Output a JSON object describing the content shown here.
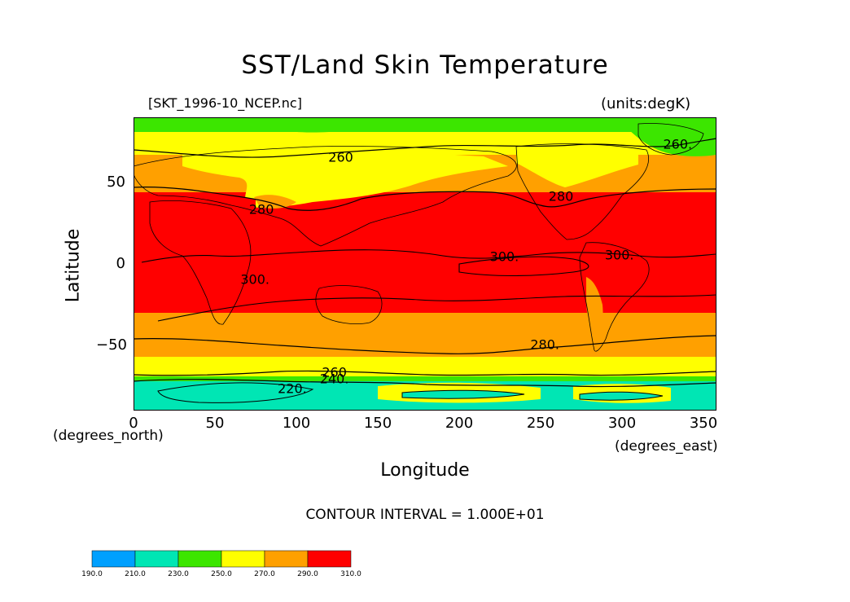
{
  "title": "SST/Land Skin Temperature",
  "file_label": "[SKT_1996-10_NCEP.nc]",
  "units_label": "(units:degK)",
  "y_axis": {
    "label": "Latitude",
    "ticks": [
      "50",
      "0",
      "−50"
    ],
    "tick_values": [
      50,
      0,
      -50
    ],
    "range": [
      -90,
      90
    ]
  },
  "x_axis": {
    "label": "Longitude",
    "ticks": [
      "0",
      "50",
      "100",
      "150",
      "200",
      "250",
      "300",
      "350"
    ],
    "tick_values": [
      0,
      50,
      100,
      150,
      200,
      250,
      300,
      350
    ],
    "range": [
      0,
      360
    ]
  },
  "x_units_left": "(degrees_north)",
  "x_units_right": "(degrees_east)",
  "contour_interval": "CONTOUR INTERVAL = 1.000E+01",
  "contour_labels": [
    {
      "text": "260",
      "lon": 128,
      "lat": 65
    },
    {
      "text": "260.",
      "lon": 336,
      "lat": 73
    },
    {
      "text": "280",
      "lon": 79,
      "lat": 33
    },
    {
      "text": "280",
      "lon": 264,
      "lat": 41
    },
    {
      "text": "300.",
      "lon": 229,
      "lat": 4
    },
    {
      "text": "300.",
      "lon": 300,
      "lat": 5
    },
    {
      "text": "300.",
      "lon": 75,
      "lat": -10
    },
    {
      "text": "280.",
      "lon": 254,
      "lat": -50
    },
    {
      "text": "260",
      "lon": 124,
      "lat": -67
    },
    {
      "text": "240.",
      "lon": 124,
      "lat": -71
    },
    {
      "text": "220.",
      "lon": 98,
      "lat": -77
    }
  ],
  "colorbar": {
    "bins": [
      {
        "from": 190,
        "to": 210,
        "color": "#00a0ff"
      },
      {
        "from": 210,
        "to": 230,
        "color": "#00e6b4"
      },
      {
        "from": 230,
        "to": 250,
        "color": "#3ce600"
      },
      {
        "from": 250,
        "to": 270,
        "color": "#ffff00"
      },
      {
        "from": 270,
        "to": 290,
        "color": "#ffa000"
      },
      {
        "from": 290,
        "to": 310,
        "color": "#ff0000"
      }
    ],
    "labels": [
      "190.0",
      "210.0",
      "230.0",
      "250.0",
      "270.0",
      "290.0",
      "310.0"
    ]
  },
  "colors": {
    "outline": "#000000",
    "background": "#ffffff"
  }
}
